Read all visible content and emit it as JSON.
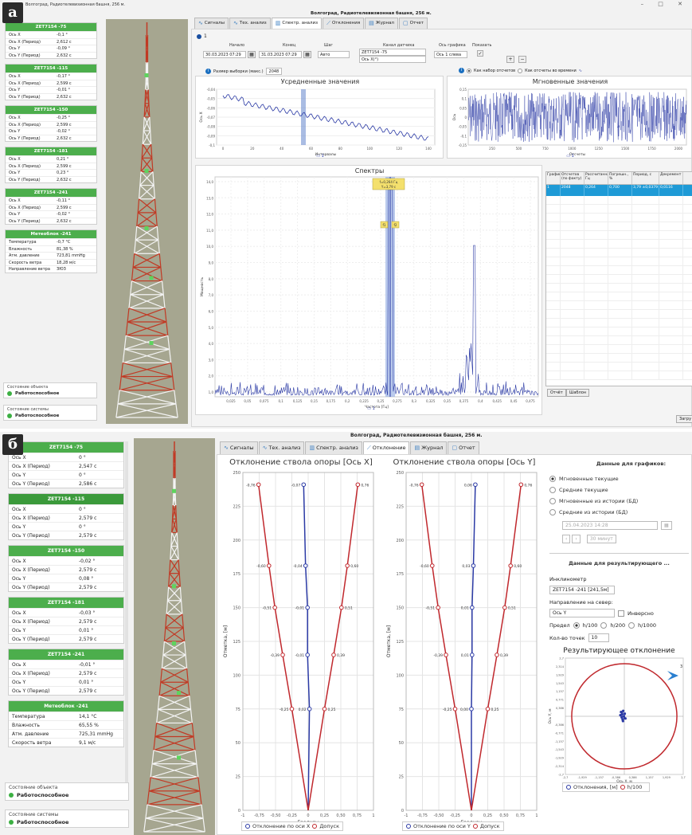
{
  "panel_a": {
    "label": "а",
    "window_title": "Волгоград, Радиотелевизионная башня, 256 м.",
    "main_title": "Волгоград, Радиотелевизионная башня, 256 м.",
    "window_controls": "– □ ✕",
    "sensors": [
      {
        "name": "ZET7154 -75",
        "rows": [
          [
            "Ось X",
            "-0,1 °"
          ],
          [
            "Ось X (Период)",
            "2,612 с"
          ],
          [
            "Ось Y",
            "-0,09 °"
          ],
          [
            "Ось Y (Период)",
            "2,632 с"
          ]
        ]
      },
      {
        "name": "ZET7154 -115",
        "rows": [
          [
            "Ось X",
            "-0,17 °"
          ],
          [
            "Ось X (Период)",
            "2,599 с"
          ],
          [
            "Ось Y",
            "-0,01 °"
          ],
          [
            "Ось Y (Период)",
            "2,632 с"
          ]
        ]
      },
      {
        "name": "ZET7154 -150",
        "rows": [
          [
            "Ось X",
            "-0,25 °"
          ],
          [
            "Ось X (Период)",
            "2,599 с"
          ],
          [
            "Ось Y",
            "-0,02 °"
          ],
          [
            "Ось Y (Период)",
            "2,632 с"
          ]
        ]
      },
      {
        "name": "ZET7154 -181",
        "rows": [
          [
            "Ось X",
            "0,21 °"
          ],
          [
            "Ось X (Период)",
            "2,599 с"
          ],
          [
            "Ось Y",
            "0,23 °"
          ],
          [
            "Ось Y (Период)",
            "2,632 с"
          ]
        ]
      },
      {
        "name": "ZET7154 -241",
        "rows": [
          [
            "Ось X",
            "-0,11 °"
          ],
          [
            "Ось X (Период)",
            "2,599 с"
          ],
          [
            "Ось Y",
            "-0,02 °"
          ],
          [
            "Ось Y (Период)",
            "2,632 с"
          ]
        ]
      },
      {
        "name": "Метеоблок -241",
        "rows": [
          [
            "Температура",
            "-0,7 °С"
          ],
          [
            "Влажность",
            "81,38 %"
          ],
          [
            "Атм. давление",
            "723,81 mmHg"
          ],
          [
            "Скорость ветра",
            "18,28 м/с"
          ],
          [
            "Направление ветра",
            "ЗЮЗ"
          ]
        ]
      }
    ],
    "object_state_title": "Состояние объекта",
    "object_state_value": "Работоспособное",
    "system_state_title": "Состояние системы",
    "system_state_value": "Работоспособное",
    "tabs": [
      "Сигналы",
      "Тех. анализ",
      "Спектр. анализ",
      "Отклонения",
      "Журнал",
      "Отчет"
    ],
    "active_tab": 2,
    "subtab": "1",
    "controls": {
      "start_label": "Начало",
      "start_value": "30.03.2023 07:29",
      "end_label": "Конец",
      "end_value": "31.03.2023 07:29",
      "step_label": "Шаг",
      "step_value": "Авто",
      "channel_label": "Канал датчика",
      "channel_value": "ZET7154 -75",
      "channel_value2": "Ось X(°)",
      "axis_label": "Ось графика",
      "axis_value": "Ось 1 слева",
      "show_label": "Показать",
      "add": "+",
      "remove": "−"
    },
    "sample_size_label": "Размер выборки (макс.)",
    "sample_size_value": "2048",
    "mode_set": "Как набор отсчетов",
    "mode_time": "Как отсчеты во времени",
    "avg_chart": {
      "title": "Усредненные значения",
      "xlabel": "Интервалы",
      "ylabel": "Ось X",
      "xticks": [
        "0",
        "20",
        "40",
        "60",
        "80",
        "100",
        "120",
        "140"
      ],
      "yticks": [
        "-0,04",
        "-0,05",
        "-0,06",
        "-0,07",
        "-0,08",
        "-0,09",
        "-0,1"
      ],
      "legend": "1"
    },
    "inst_chart": {
      "title": "Мгновенные значения",
      "xlabel": "Отсчеты",
      "ylabel": "Ось",
      "xticks": [
        "250",
        "500",
        "750",
        "1000",
        "1250",
        "1500",
        "1750",
        "2000"
      ],
      "yticks": [
        "0,15",
        "0,1",
        "0,05",
        "0",
        "-0,05",
        "-0,1",
        "-0,15"
      ],
      "legend": "1"
    },
    "spectrum_chart": {
      "title": "Спектры",
      "xlabel": "Частота [Гц]",
      "ylabel": "Мощность",
      "xticks": [
        "0,025",
        "0,05",
        "0,075",
        "0,1",
        "0,125",
        "0,15",
        "0,175",
        "0,2",
        "0,225",
        "0,25",
        "0,275",
        "0,3",
        "0,325",
        "0,35",
        "0,375",
        "0,4",
        "0,425",
        "0,45",
        "0,475"
      ],
      "yticks": [
        "14,0",
        "13,0",
        "12,0",
        "11,0",
        "10,0",
        "9,0",
        "8,0",
        "7,0",
        "6,0",
        "5,0",
        "4,0",
        "3,0",
        "2,0",
        "1,0"
      ],
      "marker_label": "f=0,264 Гц",
      "marker_label2": "Y=3,79 с",
      "marker_h1": "f1",
      "marker_h2": "f2",
      "legend": "1"
    },
    "table": {
      "headers": [
        "График",
        "Отсчетов (по факту)",
        "Рассчитанная, Гц",
        "Погрешн., %",
        "Период, с",
        "Декремент"
      ],
      "row": [
        "1",
        "2048",
        "0,264",
        "0,700",
        "3,79 ±0,0379",
        "0,0116"
      ]
    },
    "btn_report": "Отчёт",
    "btn_template": "Шаблон",
    "btn_load": "Загру"
  },
  "panel_b": {
    "label": "б",
    "main_title": "Волгоград, Радиотелевизионная башня, 256 м.",
    "sensors": [
      {
        "name": "ZET7154 -75",
        "rows": [
          [
            "Ось X",
            "0 °"
          ],
          [
            "Ось X (Период)",
            "2,547 с"
          ],
          [
            "Ось Y",
            "0 °"
          ],
          [
            "Ось Y (Период)",
            "2,586 с"
          ]
        ]
      },
      {
        "name": "ZET7154 -115",
        "rows": [
          [
            "Ось X",
            "0 °"
          ],
          [
            "Ось X (Период)",
            "2,579 с"
          ],
          [
            "Ось Y",
            "0 °"
          ],
          [
            "Ось Y (Период)",
            "2,579 с"
          ]
        ]
      },
      {
        "name": "ZET7154 -150",
        "rows": [
          [
            "Ось X",
            "-0,02 °"
          ],
          [
            "Ось X (Период)",
            "2,579 с"
          ],
          [
            "Ось Y",
            "0,08 °"
          ],
          [
            "Ось Y (Период)",
            "2,579 с"
          ]
        ]
      },
      {
        "name": "ZET7154 -181",
        "rows": [
          [
            "Ось X",
            "-0,03 °"
          ],
          [
            "Ось X (Период)",
            "2,579 с"
          ],
          [
            "Ось Y",
            "0,01 °"
          ],
          [
            "Ось Y (Период)",
            "2,579 с"
          ]
        ]
      },
      {
        "name": "ZET7154 -241",
        "rows": [
          [
            "Ось X",
            "-0,01 °"
          ],
          [
            "Ось X (Период)",
            "2,579 с"
          ],
          [
            "Ось Y",
            "0,01 °"
          ],
          [
            "Ось Y (Период)",
            "2,579 с"
          ]
        ]
      },
      {
        "name": "Метеоблок -241",
        "rows": [
          [
            "Температура",
            "14,1 °С"
          ],
          [
            "Влажность",
            "65,55 %"
          ],
          [
            "Атм. давление",
            "725,31 mmHg"
          ],
          [
            "Скорость ветра",
            "9,1 м/с"
          ]
        ]
      }
    ],
    "object_state_title": "Состояние объекта",
    "object_state_value": "Работоспособное",
    "system_state_title": "Состояние системы",
    "system_state_value": "Работоспособное",
    "tabs": [
      "Сигналы",
      "Тех. анализ",
      "Спектр. анализ",
      "Отклонение",
      "Журнал",
      "Отчет"
    ],
    "active_tab": 3,
    "chart_x_title": "Отклонение ствола опоры [Ось X]",
    "chart_y_title": "Отклонение ствола опоры [Ось Y]",
    "xlabel": "Градусы",
    "ylabel": "Отметка, [м]",
    "legend_x": "Отклонение по оси X",
    "legend_y": "Отклонение по оси Y",
    "legend_tol": "Допуск",
    "right": {
      "data_header": "Данные для графиков:",
      "modes": [
        "Мгновенные текущие",
        "Средние текущие",
        "Мгновенные из истории (БД)",
        "Средние из истории (БД)"
      ],
      "date": "25.04.2023 14:28",
      "interval": "30 минут",
      "result_header": "Данные для результирующего ...",
      "inclinometer_label": "Инклинометр",
      "inclinometer_value": "ZET7154 -241 [241,5м]",
      "north_label": "Направление на север:",
      "north_value": "Ось Y",
      "inverse_label": "Инверсно",
      "limit_label": "Предел",
      "limits": [
        "h/100",
        "h/200",
        "h/1000"
      ],
      "points_label": "Кол-во точек",
      "points_value": "10",
      "result_title": "Результирующее отклонение",
      "result_xlabel": "Ось X, м",
      "result_ylabel": "Ось Y, м",
      "result_legend1": "Отклонения, [м]",
      "result_legend2": "h/100",
      "compass": "3"
    }
  },
  "chart_data": [
    {
      "type": "line",
      "title": "Отклонение ствола опоры [Ось X]",
      "xlabel": "Градусы",
      "ylabel": "Отметка, [м]",
      "ylim": [
        0,
        250
      ],
      "xlim": [
        -1,
        1
      ],
      "xticks": [
        "-1",
        "-0,75",
        "-0,50",
        "-0,25",
        "0",
        "0,25",
        "0,50",
        "0,75",
        "1"
      ],
      "yticks": [
        "0",
        "25",
        "50",
        "75",
        "100",
        "125",
        "150",
        "175",
        "200",
        "225",
        "250"
      ],
      "series": [
        {
          "name": "Отклонение по оси X",
          "color": "#2b3aa5",
          "x": [
            0,
            0.02,
            -0.01,
            -0.01,
            -0.04,
            -0.07
          ],
          "y": [
            0,
            75,
            115,
            150,
            181,
            241
          ]
        },
        {
          "name": "Допуск",
          "color": "#c0282d",
          "x": [
            0,
            -0.25,
            -0.39,
            -0.51,
            -0.6,
            -0.76
          ],
          "y": [
            0,
            75,
            115,
            150,
            181,
            241
          ],
          "labels": [
            "",
            "-0,25",
            "-0,39",
            "-0,51",
            "-0,60",
            "-0,76"
          ]
        },
        {
          "name": "Допуск",
          "color": "#c0282d",
          "x": [
            0,
            0.25,
            0.39,
            0.51,
            0.6,
            0.76
          ],
          "y": [
            0,
            75,
            115,
            150,
            181,
            241
          ],
          "labels": [
            "",
            "0,25",
            "0,39",
            "0,51",
            "0,60",
            "0,76"
          ]
        }
      ],
      "point_labels": [
        "",
        "0,02",
        "-0,01",
        "-0,01",
        "-0,04",
        "-0,07"
      ]
    },
    {
      "type": "line",
      "title": "Отклонение ствола опоры [Ось Y]",
      "xlabel": "Градусы",
      "ylabel": "Отметка, [м]",
      "ylim": [
        0,
        250
      ],
      "xlim": [
        -1,
        1
      ],
      "xticks": [
        "-1",
        "-0,75",
        "-0,50",
        "-0,25",
        "0",
        "0,25",
        "0,50",
        "0,75",
        "1"
      ],
      "yticks": [
        "0",
        "25",
        "50",
        "75",
        "100",
        "125",
        "150",
        "175",
        "200",
        "225",
        "250"
      ],
      "series": [
        {
          "name": "Отклонение по оси Y",
          "color": "#2b3aa5",
          "x": [
            0,
            0,
            0.01,
            0.01,
            0.03,
            0.06
          ],
          "y": [
            0,
            75,
            115,
            150,
            181,
            241
          ]
        },
        {
          "name": "Допуск",
          "color": "#c0282d",
          "x": [
            0,
            -0.25,
            -0.39,
            -0.51,
            -0.6,
            -0.76
          ],
          "y": [
            0,
            75,
            115,
            150,
            181,
            241
          ],
          "labels": [
            "",
            "-0,25",
            "-0,39",
            "-0,51",
            "-0,60",
            "-0,76"
          ]
        },
        {
          "name": "Допуск",
          "color": "#c0282d",
          "x": [
            0,
            0.25,
            0.39,
            0.51,
            0.6,
            0.76
          ],
          "y": [
            0,
            75,
            115,
            150,
            181,
            241
          ],
          "labels": [
            "",
            "0,25",
            "0,39",
            "0,51",
            "0,60",
            "0,76"
          ]
        }
      ],
      "point_labels": [
        "",
        "0,00",
        "0,01",
        "0,01",
        "0,03",
        "0,06"
      ]
    },
    {
      "type": "scatter",
      "title": "Результирующее отклонение",
      "xlabel": "Ось X, м",
      "ylabel": "Ось Y, м",
      "xlim": [
        -2.7,
        2.7
      ],
      "ylim": [
        -2.7,
        2.7
      ],
      "xticks": [
        "-2,7",
        "-2,3",
        "-1,929",
        "-1,543",
        "-1,157",
        "-0,771",
        "-0,386",
        "0",
        "0,386",
        "0,771",
        "1,157",
        "1,543",
        "1,929",
        "2,3",
        "2,7"
      ],
      "yticks": [
        "2,7",
        "2,314",
        "1,929",
        "1,543",
        "1,157",
        "0,771",
        "0,386",
        "-0,386",
        "-0,771",
        "-1,157",
        "-1,543",
        "-1,929",
        "-2,314",
        "-2,7"
      ],
      "radius": 2.41,
      "points": {
        "x": [
          -0.15,
          -0.1,
          -0.05,
          -0.12,
          -0.02,
          0.05,
          -0.08,
          -0.18,
          0.02,
          -0.06
        ],
        "y": [
          0.2,
          0.1,
          0.25,
          -0.05,
          0.0,
          -0.1,
          -0.15,
          0.05,
          0.12,
          -0.22
        ]
      }
    }
  ]
}
